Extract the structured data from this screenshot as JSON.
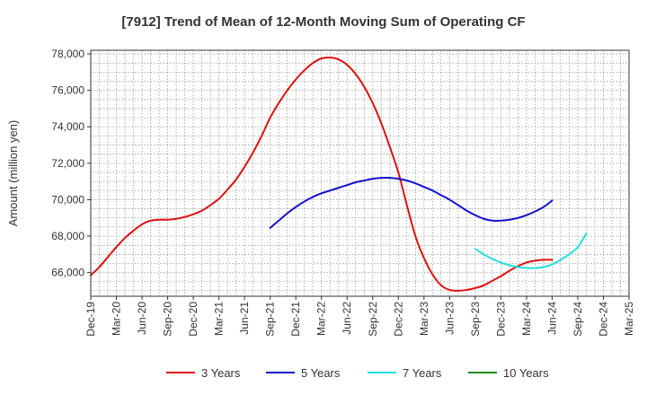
{
  "chart_data": {
    "type": "line",
    "title": "[7912]  Trend of Mean of 12-Month Moving Sum of Operating CF",
    "xlabel": "",
    "ylabel": "Amount (million yen)",
    "ylim": [
      64700,
      78200
    ],
    "yticks": [
      66000,
      68000,
      70000,
      72000,
      74000,
      76000,
      78000
    ],
    "ytick_labels": [
      "66,000",
      "68,000",
      "70,000",
      "72,000",
      "74,000",
      "76,000",
      "78,000"
    ],
    "x_labels": [
      "Dec-19",
      "Mar-20",
      "Jun-20",
      "Sep-20",
      "Dec-20",
      "Mar-21",
      "Jun-21",
      "Sep-21",
      "Dec-21",
      "Mar-22",
      "Jun-22",
      "Sep-22",
      "Dec-22",
      "Mar-23",
      "Jun-23",
      "Sep-23",
      "Dec-23",
      "Mar-24",
      "Jun-24",
      "Sep-24",
      "Dec-24",
      "Mar-25"
    ],
    "grid": true,
    "legend_position": "bottom",
    "series": [
      {
        "name": "3 Years",
        "color": "#dd1111",
        "start_index": 0,
        "values": [
          65850,
          66300,
          66850,
          67400,
          67900,
          68300,
          68650,
          68850,
          68900,
          68900,
          68950,
          69050,
          69200,
          69400,
          69700,
          70050,
          70550,
          71100,
          71800,
          72600,
          73500,
          74500,
          75300,
          76000,
          76600,
          77100,
          77500,
          77750,
          77800,
          77700,
          77400,
          76900,
          76200,
          75300,
          74200,
          72900,
          71500,
          69700,
          68000,
          66800,
          65900,
          65300,
          65050,
          65000,
          65050,
          65150,
          65300,
          65550,
          65800,
          66100,
          66350,
          66550,
          66650,
          66700,
          66700
        ]
      },
      {
        "name": "5 Years",
        "color": "#1111cc",
        "start_index": 21,
        "values": [
          68450,
          68850,
          69250,
          69600,
          69900,
          70150,
          70350,
          70500,
          70650,
          70800,
          70950,
          71050,
          71150,
          71200,
          71200,
          71150,
          71050,
          70900,
          70700,
          70500,
          70250,
          70000,
          69700,
          69400,
          69150,
          68950,
          68850,
          68850,
          68900,
          69000,
          69150,
          69350,
          69600,
          69950
        ]
      },
      {
        "name": "7 Years",
        "color": "#22e0e0",
        "start_index": 45,
        "values": [
          67300,
          67000,
          66750,
          66550,
          66400,
          66300,
          66250,
          66250,
          66300,
          66450,
          66700,
          67000,
          67400,
          68150
        ]
      },
      {
        "name": "10 Years",
        "color": "#228b22",
        "start_index": 0,
        "values": []
      }
    ]
  }
}
